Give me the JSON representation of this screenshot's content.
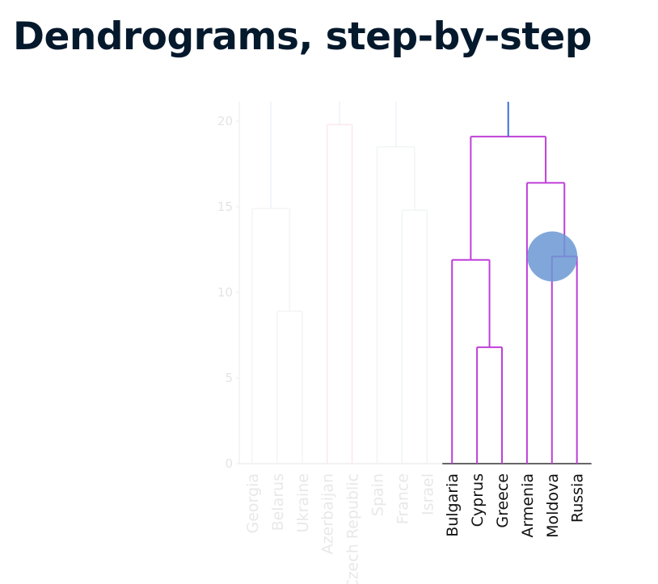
{
  "page": {
    "title": "Dendrograms, step-by-step"
  },
  "chart_data": {
    "type": "dendrogram",
    "title": "",
    "xlabel": "",
    "ylabel": "",
    "ylim": [
      0,
      21
    ],
    "yticks": [
      0,
      5,
      10,
      15,
      20
    ],
    "leaves": [
      "Georgia",
      "Belarus",
      "Ukraine",
      "Azerbaijan",
      "Czech Republic",
      "Spain",
      "France",
      "Israel",
      "Bulgaria",
      "Cyprus",
      "Greece",
      "Armenia",
      "Moldova",
      "Russia"
    ],
    "merges": [
      {
        "left": "Belarus",
        "right": "Ukraine",
        "height": 8.9,
        "color": "#f5f5f5",
        "faded": true
      },
      {
        "left": "Georgia",
        "right": "Belarus+Ukraine",
        "height": 14.9,
        "color": "#f5f5f5",
        "faded": true
      },
      {
        "left": "Azerbaijan",
        "right": "Czech Republic",
        "height": 19.8,
        "color": "#fce8ec",
        "faded": true
      },
      {
        "left": "France",
        "right": "Israel",
        "height": 14.8,
        "color": "#f0f6f2",
        "faded": true
      },
      {
        "left": "Spain",
        "right": "France+Israel",
        "height": 18.5,
        "color": "#f0f6f2",
        "faded": true
      },
      {
        "left": "Cyprus",
        "right": "Greece",
        "height": 6.8,
        "color": "#bf3fd8",
        "faded": false
      },
      {
        "left": "Bulgaria",
        "right": "Cyprus+Greece",
        "height": 11.9,
        "color": "#bf3fd8",
        "faded": false
      },
      {
        "left": "Moldova",
        "right": "Russia",
        "height": 12.1,
        "color": "#bf3fd8",
        "faded": false
      },
      {
        "left": "Armenia",
        "right": "Moldova+Russia",
        "height": 16.4,
        "color": "#bf3fd8",
        "faded": false
      },
      {
        "left": "Bulgaria+Cyprus+Greece",
        "right": "Armenia+Moldova+Russia",
        "height": 19.1,
        "color": "#bf3fd8",
        "faded": false
      }
    ],
    "above_clusters": [
      {
        "cluster": "Georgia+Belarus+Ukraine",
        "color": "#eef2fb",
        "faded": true
      },
      {
        "cluster": "Azerbaijan+Czech Republic",
        "color": "#eef2fb",
        "faded": true
      },
      {
        "cluster": "Spain+France+Israel",
        "color": "#eef2fb",
        "faded": true
      },
      {
        "cluster": "Bulgaria+Cyprus+Greece+Armenia+Moldova+Russia",
        "color": "#3a6fd8",
        "faded": false
      }
    ],
    "highlight": {
      "merge": "Moldova+Russia",
      "color": "#6b98d4"
    },
    "grid": false,
    "legend": "none"
  }
}
